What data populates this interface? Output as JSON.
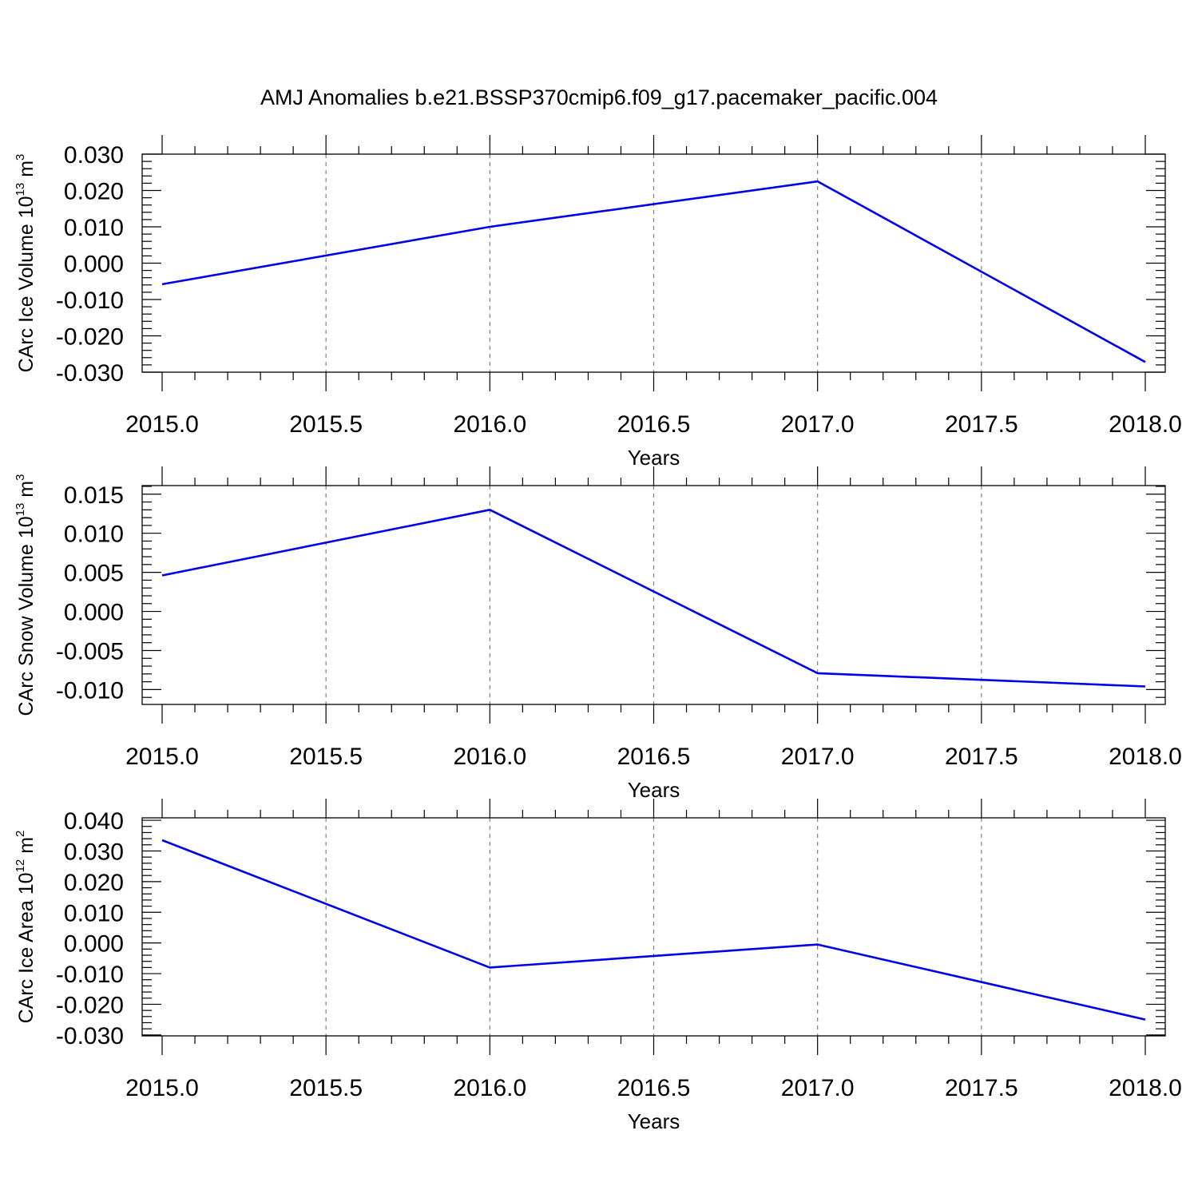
{
  "title": "AMJ Anomalies b.e21.BSSP370cmip6.f09_g17.pacemaker_pacific.004",
  "colors": {
    "series": "#0000ee",
    "grid": "#808080",
    "axis": "#000000"
  },
  "chart_data": [
    {
      "type": "line",
      "xlabel": "Years",
      "ylabel": {
        "text": "CArc Ice Volume 10",
        "exp": "13",
        "unit": " m",
        "unit_exp": "3"
      },
      "xlim": [
        2015.0,
        2018.0
      ],
      "ylim": [
        -0.03,
        0.03
      ],
      "ylim_display": [
        -0.03,
        0.03
      ],
      "grid": "vertical dashed",
      "x_ticks": [
        "2015.0",
        "2015.5",
        "2016.0",
        "2016.5",
        "2017.0",
        "2017.5",
        "2018.0"
      ],
      "x_tick_values": [
        2015.0,
        2015.5,
        2016.0,
        2016.5,
        2017.0,
        2017.5,
        2018.0
      ],
      "y_ticks": [
        "0.030",
        "0.020",
        "0.010",
        "0.000",
        "-0.010",
        "-0.020",
        "-0.030"
      ],
      "y_tick_values": [
        0.03,
        0.02,
        0.01,
        0.0,
        -0.01,
        -0.02,
        -0.03
      ],
      "y_minor_step": 0.002,
      "x": [
        2015,
        2016,
        2017,
        2018
      ],
      "y": [
        -0.0058,
        0.01,
        0.0225,
        -0.0272
      ]
    },
    {
      "type": "line",
      "xlabel": "Years",
      "ylabel": {
        "text": "CArc Snow Volume 10",
        "exp": "13",
        "unit": " m",
        "unit_exp": "3"
      },
      "xlim": [
        2015.0,
        2018.0
      ],
      "ylim": [
        -0.0119,
        0.0161
      ],
      "grid": "vertical dashed",
      "x_ticks": [
        "2015.0",
        "2015.5",
        "2016.0",
        "2016.5",
        "2017.0",
        "2017.5",
        "2018.0"
      ],
      "x_tick_values": [
        2015.0,
        2015.5,
        2016.0,
        2016.5,
        2017.0,
        2017.5,
        2018.0
      ],
      "y_ticks": [
        "0.015",
        "0.010",
        "0.005",
        "0.000",
        "-0.005",
        "-0.010"
      ],
      "y_tick_values": [
        0.015,
        0.01,
        0.005,
        0.0,
        -0.005,
        -0.01
      ],
      "y_minor_step": 0.001,
      "x": [
        2015,
        2016,
        2017,
        2018
      ],
      "y": [
        0.0046,
        0.013,
        -0.0079,
        -0.0096
      ]
    },
    {
      "type": "line",
      "xlabel": "Years",
      "ylabel": {
        "text": "CArc Ice Area 10",
        "exp": "12",
        "unit": " m",
        "unit_exp": "2"
      },
      "xlim": [
        2015.0,
        2018.0
      ],
      "ylim": [
        -0.0303,
        0.0408
      ],
      "grid": "vertical dashed",
      "x_ticks": [
        "2015.0",
        "2015.5",
        "2016.0",
        "2016.5",
        "2017.0",
        "2017.5",
        "2018.0"
      ],
      "x_tick_values": [
        2015.0,
        2015.5,
        2016.0,
        2016.5,
        2017.0,
        2017.5,
        2018.0
      ],
      "y_ticks": [
        "0.040",
        "0.030",
        "0.020",
        "0.010",
        "0.000",
        "-0.010",
        "-0.020",
        "-0.030"
      ],
      "y_tick_values": [
        0.04,
        0.03,
        0.02,
        0.01,
        0.0,
        -0.01,
        -0.02,
        -0.03
      ],
      "y_minor_step": 0.002,
      "x": [
        2015,
        2016,
        2017,
        2018
      ],
      "y": [
        0.0335,
        -0.008,
        -0.0005,
        -0.025
      ]
    }
  ]
}
